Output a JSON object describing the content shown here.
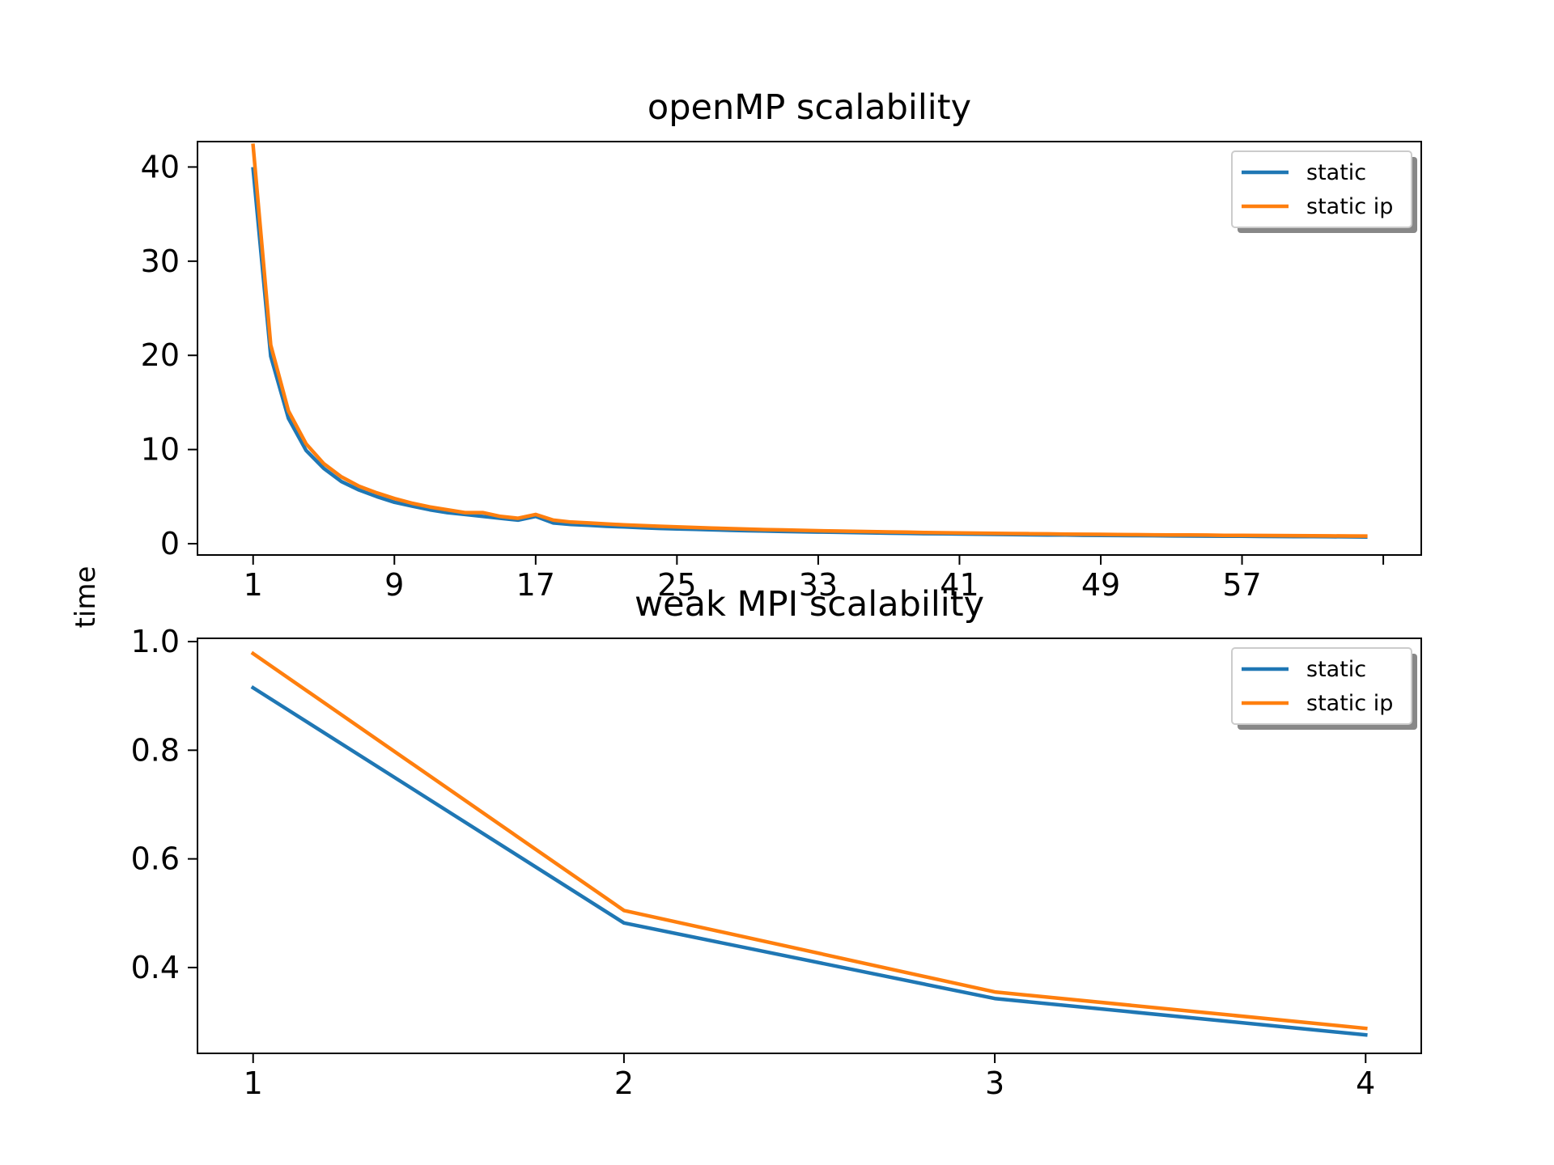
{
  "figure": {
    "ylabel": "time"
  },
  "colors": {
    "static": "#1f77b4",
    "static_ip": "#ff7f0e"
  },
  "chart_data": [
    {
      "type": "line",
      "title": "openMP scalability",
      "xlabel": "",
      "ylabel": "time",
      "xlim": [
        -2.15,
        67.15
      ],
      "ylim": [
        -1.2,
        42.7
      ],
      "xticks": [
        1,
        9,
        17,
        25,
        33,
        41,
        49,
        57,
        65
      ],
      "xtick_labels": [
        "1",
        "9",
        "17",
        "25",
        "33",
        "41",
        "49",
        "57",
        ""
      ],
      "yticks": [
        0,
        10,
        20,
        30,
        40
      ],
      "ytick_labels": [
        "0",
        "10",
        "20",
        "30",
        "40"
      ],
      "grid": false,
      "legend": "top-right",
      "x": [
        1,
        2,
        3,
        4,
        5,
        6,
        7,
        8,
        9,
        10,
        11,
        12,
        13,
        14,
        15,
        16,
        17,
        18,
        19,
        20,
        21,
        22,
        23,
        24,
        25,
        26,
        27,
        28,
        29,
        30,
        31,
        32,
        33,
        34,
        35,
        36,
        37,
        38,
        39,
        40,
        41,
        42,
        43,
        44,
        45,
        46,
        47,
        48,
        49,
        50,
        51,
        52,
        53,
        54,
        55,
        56,
        57,
        58,
        59,
        60,
        61,
        62,
        63,
        64
      ],
      "series": [
        {
          "name": "static",
          "color": "#1f77b4",
          "values": [
            39.8,
            19.9,
            13.3,
            9.9,
            8.0,
            6.6,
            5.7,
            5.0,
            4.4,
            4.0,
            3.6,
            3.3,
            3.1,
            2.9,
            2.7,
            2.5,
            2.9,
            2.2,
            2.05,
            1.95,
            1.85,
            1.78,
            1.7,
            1.63,
            1.57,
            1.52,
            1.47,
            1.42,
            1.38,
            1.34,
            1.3,
            1.27,
            1.24,
            1.21,
            1.18,
            1.15,
            1.12,
            1.1,
            1.07,
            1.05,
            1.03,
            1.01,
            0.99,
            0.97,
            0.95,
            0.93,
            0.92,
            0.9,
            0.89,
            0.87,
            0.86,
            0.85,
            0.83,
            0.82,
            0.81,
            0.8,
            0.79,
            0.78,
            0.77,
            0.76,
            0.75,
            0.74,
            0.73,
            0.72
          ]
        },
        {
          "name": "static ip",
          "color": "#ff7f0e",
          "values": [
            42.3,
            21.1,
            14.1,
            10.6,
            8.5,
            7.1,
            6.1,
            5.4,
            4.8,
            4.3,
            3.9,
            3.6,
            3.3,
            3.3,
            2.9,
            2.7,
            3.1,
            2.5,
            2.3,
            2.2,
            2.1,
            2.0,
            1.93,
            1.85,
            1.78,
            1.72,
            1.66,
            1.6,
            1.55,
            1.5,
            1.46,
            1.42,
            1.38,
            1.34,
            1.31,
            1.28,
            1.25,
            1.22,
            1.19,
            1.16,
            1.14,
            1.12,
            1.1,
            1.08,
            1.06,
            1.04,
            1.02,
            1.0,
            0.99,
            0.97,
            0.96,
            0.94,
            0.93,
            0.92,
            0.91,
            0.89,
            0.88,
            0.87,
            0.86,
            0.85,
            0.84,
            0.83,
            0.82,
            0.81
          ]
        }
      ]
    },
    {
      "type": "line",
      "title": "weak MPI scalability",
      "xlabel": "",
      "ylabel": "time",
      "xlim": [
        0.85,
        4.15
      ],
      "ylim": [
        0.242,
        1.006
      ],
      "xticks": [
        1,
        2,
        3,
        4
      ],
      "xtick_labels": [
        "1",
        "2",
        "3",
        "4"
      ],
      "yticks": [
        0.4,
        0.6,
        0.8,
        1.0
      ],
      "ytick_labels": [
        "0.4",
        "0.6",
        "0.8",
        "1.0"
      ],
      "grid": false,
      "legend": "top-right",
      "x": [
        1,
        2,
        3,
        4
      ],
      "series": [
        {
          "name": "static",
          "color": "#1f77b4",
          "values": [
            0.915,
            0.482,
            0.343,
            0.276
          ]
        },
        {
          "name": "static ip",
          "color": "#ff7f0e",
          "values": [
            0.978,
            0.505,
            0.355,
            0.288
          ]
        }
      ]
    }
  ]
}
